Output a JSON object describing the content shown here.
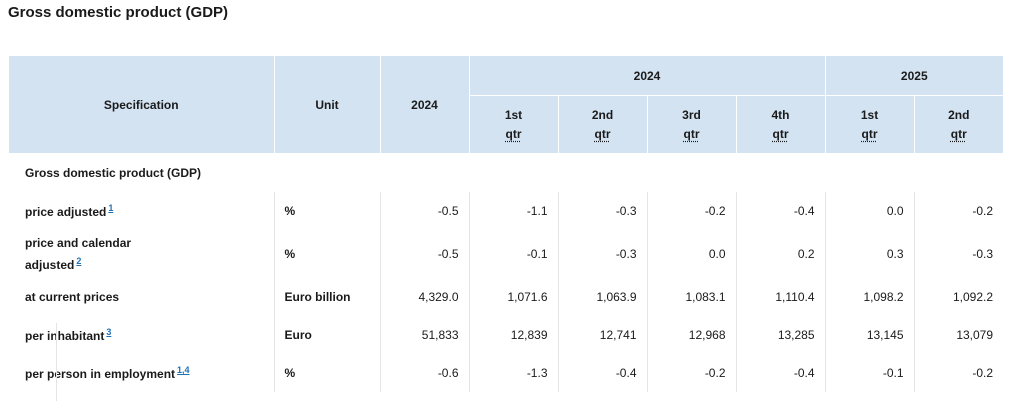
{
  "page_title": "Gross domestic product (GDP)",
  "header": {
    "specification": "Specification",
    "unit": "Unit",
    "year_2024": "2024",
    "group_2024": "2024",
    "group_2025": "2025",
    "quarters_2024": [
      {
        "line1": "1st",
        "line2": "qtr"
      },
      {
        "line1": "2nd",
        "line2": "qtr"
      },
      {
        "line1": "3rd",
        "line2": "qtr"
      },
      {
        "line1": "4th",
        "line2": "qtr"
      }
    ],
    "quarters_2025": [
      {
        "line1": "1st",
        "line2": "qtr"
      },
      {
        "line1": "2nd",
        "line2": "qtr"
      }
    ]
  },
  "section_label": "Gross domestic product (GDP)",
  "rows": [
    {
      "label": "price adjusted",
      "footnote": "1",
      "unit": "%",
      "values": [
        "-0.5",
        "-1.1",
        "-0.3",
        "-0.2",
        "-0.4",
        "0.0",
        "-0.2"
      ]
    },
    {
      "label_line1": "price and calendar",
      "label_line2": "adjusted",
      "footnote": "2",
      "unit": "%",
      "values": [
        "-0.5",
        "-0.1",
        "-0.3",
        "0.0",
        "0.2",
        "0.3",
        "-0.3"
      ]
    },
    {
      "label": "at current prices",
      "unit": "Euro billion",
      "values": [
        "4,329.0",
        "1,071.6",
        "1,063.9",
        "1,083.1",
        "1,110.4",
        "1,098.2",
        "1,092.2"
      ]
    },
    {
      "label": "per inhabitant",
      "footnote": "3",
      "unit": "Euro",
      "values": [
        "51,833",
        "12,839",
        "12,741",
        "12,968",
        "13,285",
        "13,145",
        "13,079"
      ]
    },
    {
      "label": "per person in employment",
      "footnote": "1,4",
      "unit": "%",
      "values": [
        "-0.6",
        "-1.3",
        "-0.4",
        "-0.2",
        "-0.4",
        "-0.1",
        "-0.2"
      ]
    }
  ]
}
